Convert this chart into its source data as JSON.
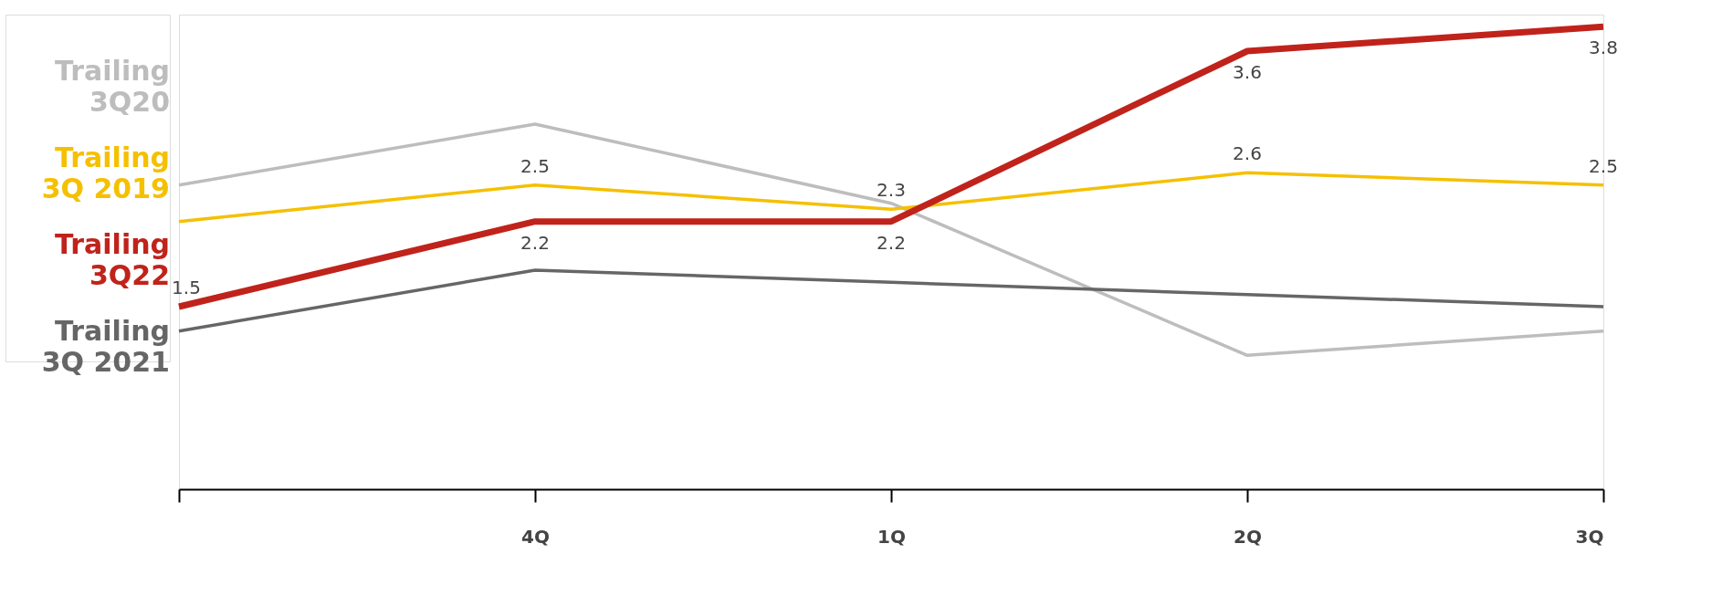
{
  "chart_data": {
    "type": "line",
    "categories": [
      null,
      "4Q",
      "1Q",
      "2Q",
      "3Q"
    ],
    "ylim": [
      0,
      3.9
    ],
    "series": [
      {
        "name": "Trailing 3Q20",
        "color": "#bdbdbd",
        "values": [
          2.5,
          3.0,
          2.35,
          1.1,
          1.3
        ]
      },
      {
        "name": "Trailing 3Q 2019",
        "color": "#f5c000",
        "values": [
          2.2,
          2.5,
          2.3,
          2.6,
          2.5
        ],
        "value_labels": [
          null,
          "2.5",
          "2.3",
          "2.6",
          "2.5"
        ]
      },
      {
        "name": "Trailing 3Q22",
        "color": "#c0231b",
        "values": [
          1.5,
          2.2,
          2.2,
          3.6,
          3.8
        ],
        "value_labels": [
          "1.5",
          "2.2",
          "2.2",
          "3.6",
          "3.8"
        ]
      },
      {
        "name": "Trailing 3Q 2021",
        "color": "#666666",
        "values": [
          1.3,
          1.8,
          1.7,
          1.6,
          1.5
        ]
      }
    ],
    "legend": "left",
    "grid": false,
    "marker": "none",
    "line_style": "solid"
  }
}
